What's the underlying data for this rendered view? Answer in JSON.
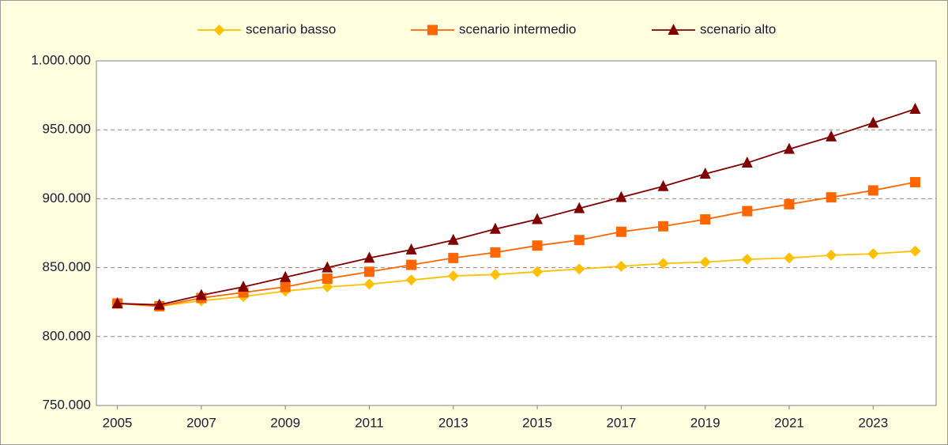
{
  "chart_data": {
    "type": "line",
    "x": [
      2005,
      2006,
      2007,
      2008,
      2009,
      2010,
      2011,
      2012,
      2013,
      2014,
      2015,
      2016,
      2017,
      2018,
      2019,
      2020,
      2021,
      2022,
      2023,
      2024
    ],
    "xlim": [
      2004.5,
      2024.5
    ],
    "xticks": [
      2005,
      2007,
      2009,
      2011,
      2013,
      2015,
      2017,
      2019,
      2021,
      2023
    ],
    "ylim": [
      750000,
      1000000
    ],
    "yticks": [
      {
        "value": 750000,
        "label": "750.000"
      },
      {
        "value": 800000,
        "label": "800.000"
      },
      {
        "value": 850000,
        "label": "850.000"
      },
      {
        "value": 900000,
        "label": "900.000"
      },
      {
        "value": 950000,
        "label": "950.000"
      },
      {
        "value": 1000000,
        "label": "1.000.000"
      }
    ],
    "grid": true,
    "legend": "top",
    "series": [
      {
        "name": "scenario basso",
        "color": "#FFC000",
        "marker": "diamond",
        "values": [
          824000,
          822000,
          826000,
          829000,
          833000,
          836000,
          838000,
          841000,
          844000,
          845000,
          847000,
          849000,
          851000,
          853000,
          854000,
          856000,
          857000,
          859000,
          860000,
          862000
        ]
      },
      {
        "name": "scenario intermedio",
        "color": "#FF6600",
        "marker": "square",
        "values": [
          824000,
          822000,
          828000,
          832000,
          836000,
          842000,
          847000,
          852000,
          857000,
          861000,
          866000,
          870000,
          876000,
          880000,
          885000,
          891000,
          896000,
          901000,
          906000,
          912000
        ]
      },
      {
        "name": "scenario alto",
        "color": "#800000",
        "marker": "triangle",
        "values": [
          824000,
          823000,
          830000,
          836000,
          843000,
          850000,
          857000,
          863000,
          870000,
          878000,
          885000,
          893000,
          901000,
          909000,
          918000,
          926000,
          936000,
          945000,
          955000,
          965000
        ]
      }
    ]
  }
}
